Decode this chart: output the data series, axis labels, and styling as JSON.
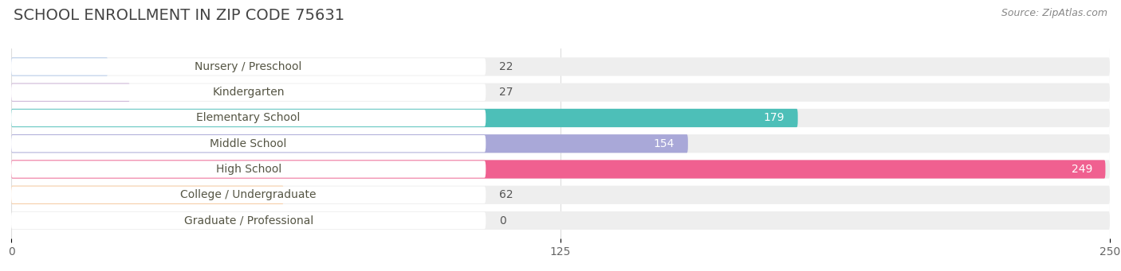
{
  "title": "SCHOOL ENROLLMENT IN ZIP CODE 75631",
  "source": "Source: ZipAtlas.com",
  "categories": [
    "Nursery / Preschool",
    "Kindergarten",
    "Elementary School",
    "Middle School",
    "High School",
    "College / Undergraduate",
    "Graduate / Professional"
  ],
  "values": [
    22,
    27,
    179,
    154,
    249,
    62,
    0
  ],
  "colors": [
    "#aec6e8",
    "#c9aed4",
    "#4dbfb8",
    "#a9a8d8",
    "#f06090",
    "#f7c89b",
    "#f5a8a8"
  ],
  "bar_bg_color": "#eeeeee",
  "xlim_max": 250,
  "xticks": [
    0,
    125,
    250
  ],
  "title_fontsize": 14,
  "source_fontsize": 9,
  "cat_fontsize": 10,
  "val_fontsize": 10,
  "tick_fontsize": 10,
  "bar_height": 0.72,
  "bar_gap": 0.28,
  "background_color": "#ffffff",
  "label_box_color": "#ffffff",
  "cat_text_color": "#555544",
  "val_text_color_outside": "#555555",
  "val_text_color_inside": "#ffffff",
  "grid_color": "#dddddd",
  "title_color": "#444444",
  "source_color": "#888888"
}
